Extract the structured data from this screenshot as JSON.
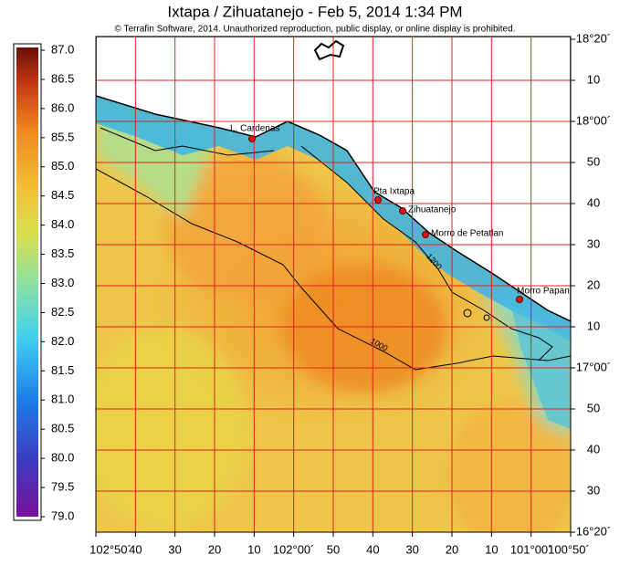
{
  "header": {
    "title": "Ixtapa / Zihuatanejo - Feb 5, 2014 1:34 PM",
    "subtitle": "© Terrafin Software,  2014.  Unauthorized reproduction, public display, or online display is prohibited."
  },
  "colorbar": {
    "labels": [
      "87.0",
      "86.5",
      "86.0",
      "85.5",
      "85.0",
      "84.5",
      "84.0",
      "83.5",
      "83.0",
      "82.5",
      "82.0",
      "81.5",
      "81.0",
      "80.5",
      "80.0",
      "79.5",
      "79.0"
    ]
  },
  "longitude_labels": [
    "102°50´",
    "40",
    "30",
    "20",
    "10",
    "102°00´",
    "50",
    "40",
    "30",
    "20",
    "10",
    "101°00´",
    "100°50´"
  ],
  "latitude_labels": [
    "18°20´",
    "10",
    "18°00´",
    "50",
    "40",
    "30",
    "20",
    "10",
    "17°00´",
    "50",
    "40",
    "30",
    "16°20´"
  ],
  "places": [
    "L. Cardenas",
    "Pta Ixtapa",
    "Zihuatanejo",
    "Morro de Petatlan",
    "Morro Papan"
  ],
  "contours": [
    "1000",
    "1200"
  ]
}
